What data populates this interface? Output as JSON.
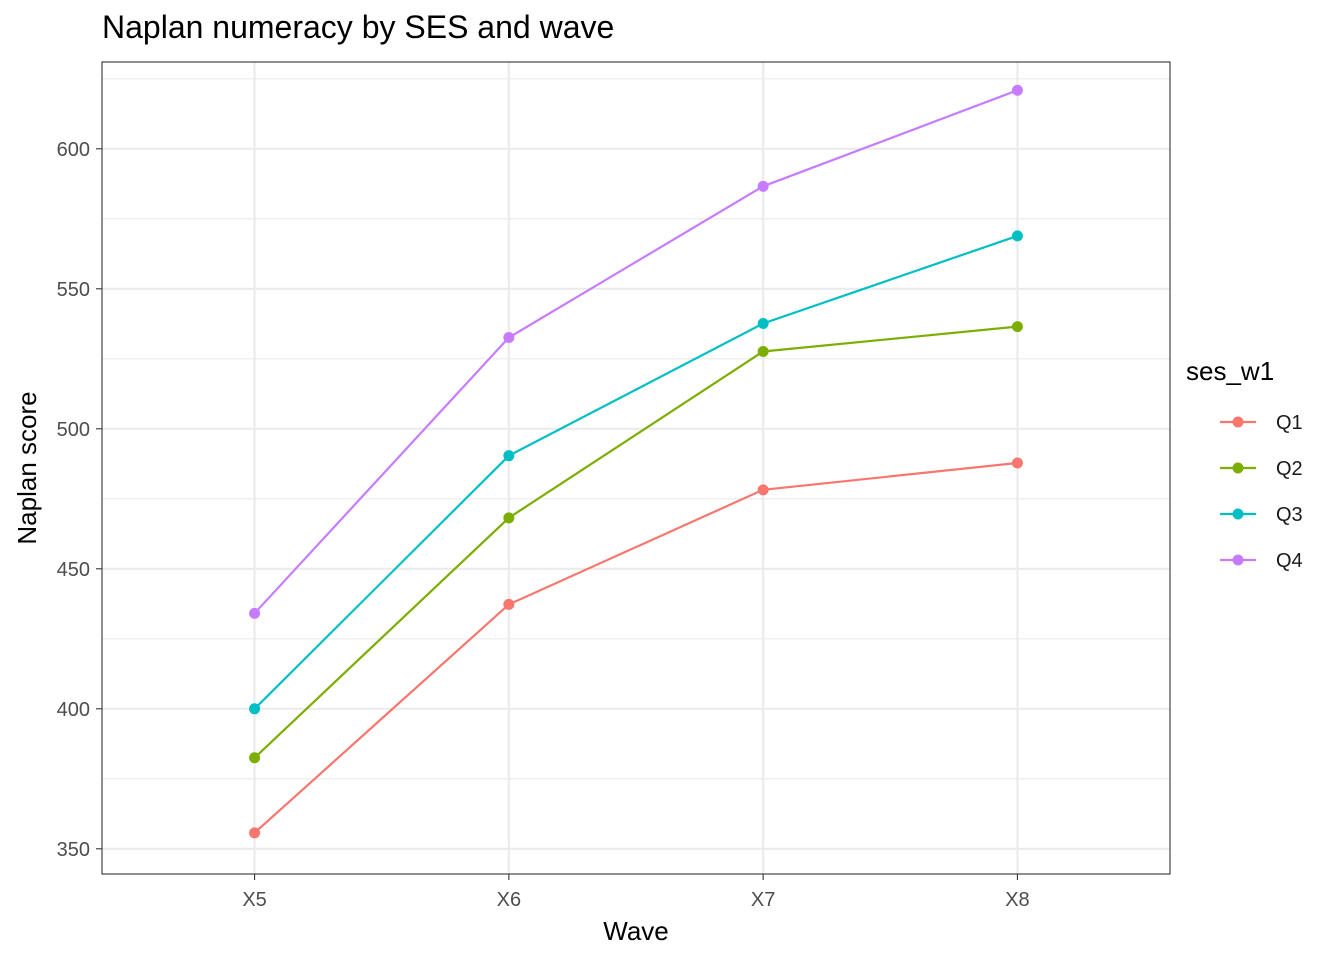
{
  "chart_data": {
    "type": "line",
    "title": "Naplan numeracy by SES and wave",
    "xlabel": "Wave",
    "ylabel": "Naplan score",
    "categories": [
      "X5",
      "X6",
      "X7",
      "X8"
    ],
    "ylim": [
      341,
      631
    ],
    "yticks": [
      350,
      400,
      450,
      500,
      550,
      600
    ],
    "grid": true,
    "legend": {
      "title": "ses_w1",
      "position": "right"
    },
    "series": [
      {
        "name": "Q1",
        "color": "#F8766D",
        "values": [
          355.7,
          437.3,
          478.2,
          487.8
        ]
      },
      {
        "name": "Q2",
        "color": "#7CAE00",
        "values": [
          382.5,
          468.2,
          527.6,
          536.5
        ]
      },
      {
        "name": "Q3",
        "color": "#00BFC4",
        "values": [
          400.0,
          490.4,
          537.6,
          568.9
        ]
      },
      {
        "name": "Q4",
        "color": "#C77CFF",
        "values": [
          434.1,
          532.6,
          586.6,
          620.9
        ]
      }
    ]
  }
}
